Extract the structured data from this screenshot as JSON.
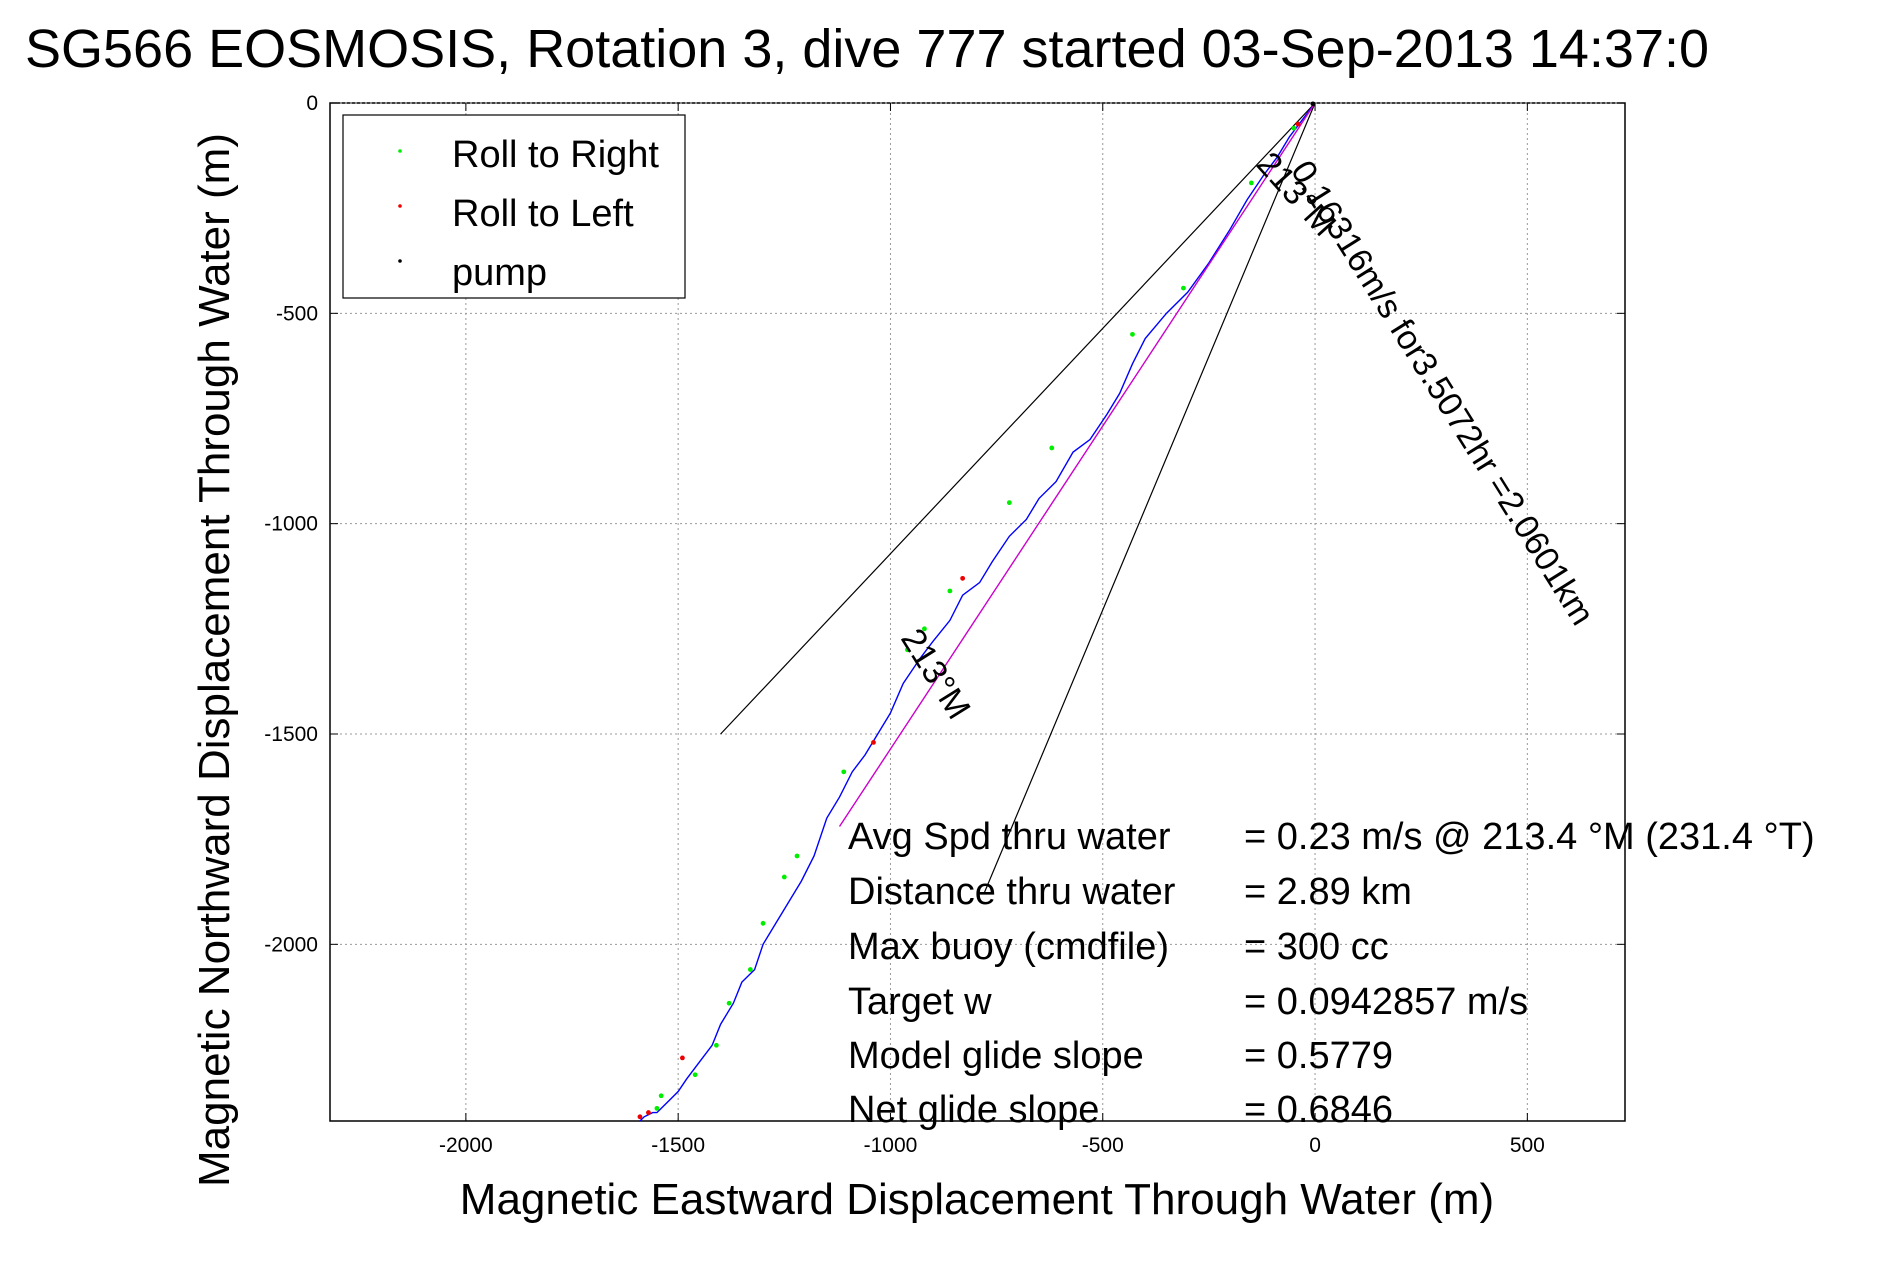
{
  "chart_data": {
    "type": "line",
    "title": "SG566 EOSMOSIS, Rotation 3, dive 777 started 03-Sep-2013 14:37:0",
    "xlabel": "Magnetic Eastward Displacement Through Water (m)",
    "ylabel": "Magnetic Northward Displacement Through Water (m)",
    "xlim": [
      -2320,
      730
    ],
    "ylim": [
      -2420,
      0
    ],
    "xticks": [
      -2000,
      -1500,
      -1000,
      -500,
      0,
      500
    ],
    "xtick_labels": [
      "-2000",
      "-1500",
      "-1000",
      "-500",
      "0",
      "500"
    ],
    "yticks": [
      0,
      -500,
      -1000,
      -1500,
      -2000
    ],
    "ytick_labels": [
      "0",
      "-500",
      "-1000",
      "-1500",
      "-2000"
    ],
    "grid": true,
    "legend": {
      "placement": "top-left",
      "entries": [
        {
          "label": "Roll to Right",
          "color": "#00ee00"
        },
        {
          "label": "Roll to Left",
          "color": "#ee0000"
        },
        {
          "label": "pump",
          "color": "#000000"
        }
      ]
    },
    "series": [
      {
        "color": "#0000ff",
        "x": [
          0,
          -30,
          -60,
          -90,
          -120,
          -160,
          -200,
          -250,
          -300,
          -350,
          -400,
          -430,
          -460,
          -490,
          -530,
          -570,
          -610,
          -650,
          -680,
          -720,
          -760,
          -790,
          -830,
          -860,
          -900,
          -930,
          -970,
          -1000,
          -1030,
          -1060,
          -1090,
          -1120,
          -1150,
          -1180,
          -1210,
          -1240,
          -1270,
          -1300,
          -1320,
          -1350,
          -1370,
          -1400,
          -1420,
          -1450,
          -1480,
          -1500,
          -1520,
          -1540,
          -1550,
          -1560,
          -1580,
          -1590
        ],
        "y": [
          0,
          -40,
          -80,
          -130,
          -170,
          -230,
          -300,
          -380,
          -450,
          -500,
          -560,
          -620,
          -690,
          -740,
          -800,
          -830,
          -900,
          -940,
          -990,
          -1030,
          -1090,
          -1140,
          -1170,
          -1230,
          -1280,
          -1320,
          -1380,
          -1450,
          -1500,
          -1550,
          -1590,
          -1650,
          -1700,
          -1790,
          -1850,
          -1900,
          -1950,
          -2000,
          -2060,
          -2090,
          -2140,
          -2190,
          -2240,
          -2280,
          -2320,
          -2350,
          -2370,
          -2390,
          -2400,
          -2400,
          -2410,
          -2420
        ]
      },
      {
        "color": "#cc00cc",
        "x": [
          0,
          -1120
        ],
        "y": [
          0,
          -1720
        ]
      }
    ],
    "guide_lines": [
      {
        "color": "#000000",
        "x": [
          0,
          -1400
        ],
        "y": [
          0,
          -1500
        ]
      },
      {
        "color": "#000000",
        "x": [
          0,
          -780
        ],
        "y": [
          0,
          -1880
        ]
      }
    ],
    "markers": [
      {
        "type": "Roll to Right",
        "color": "#00ee00",
        "x": [
          -50,
          -150,
          -310,
          -430,
          -620,
          -720,
          -860,
          -920,
          -960,
          -1110,
          -1220,
          -1250,
          -1300,
          -1330,
          -1380,
          -1410,
          -1460,
          -1540,
          -1550
        ],
        "y": [
          -60,
          -190,
          -440,
          -550,
          -820,
          -950,
          -1160,
          -1250,
          -1300,
          -1590,
          -1790,
          -1840,
          -1950,
          -2060,
          -2140,
          -2240,
          -2310,
          -2360,
          -2390
        ]
      },
      {
        "type": "Roll to Left",
        "color": "#ee0000",
        "x": [
          -40,
          -830,
          -1040,
          -1490,
          -1570,
          -1590
        ],
        "y": [
          -50,
          -1130,
          -1520,
          -2270,
          -2400,
          -2410
        ]
      },
      {
        "type": "pump",
        "color": "#000000",
        "x": [
          -5
        ],
        "y": [
          -2
        ]
      }
    ],
    "annotations": {
      "rotated_line1": "0.16316m/s for3.5072hr =2.0601km",
      "heading_top": "213°M",
      "heading_bottom": "213°M"
    },
    "stats": [
      {
        "label": "Avg Spd thru water",
        "value": "=  0.23 m/s @ 213.4  °M (231.4  °T)"
      },
      {
        "label": "Distance thru water",
        "value": "=  2.89 km"
      },
      {
        "label": "Max buoy (cmdfile)",
        "value": "= 300 cc"
      },
      {
        "label": "Target w",
        "value": "= 0.0942857 m/s"
      },
      {
        "label": "Model glide slope",
        "value": "= 0.5779"
      },
      {
        "label": "Net glide slope",
        "value": "= 0.6846"
      }
    ]
  }
}
